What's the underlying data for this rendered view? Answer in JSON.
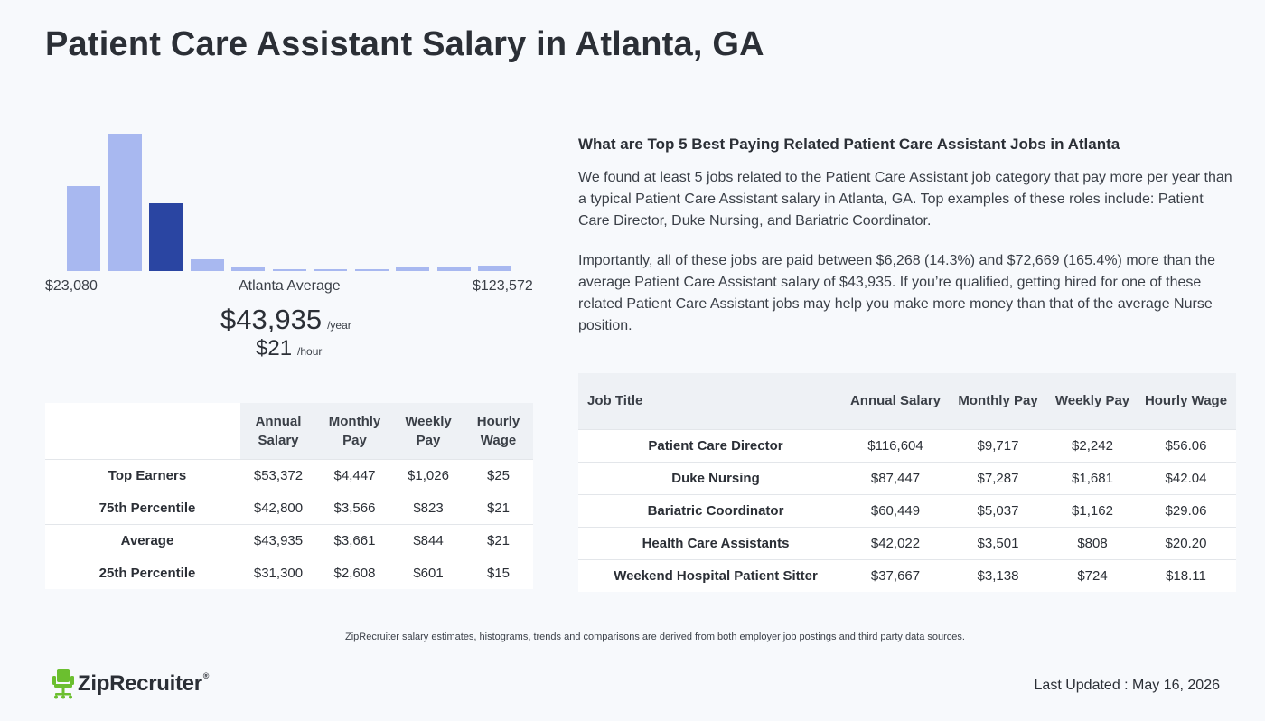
{
  "page_title": "Patient Care Assistant Salary in Atlanta, GA",
  "histogram": {
    "values": [
      94,
      152,
      75,
      13,
      4,
      2,
      2,
      2,
      4,
      5,
      6
    ],
    "active_index": 2,
    "min_label": "$23,080",
    "avg_label": "Atlanta Average",
    "max_label": "$123,572",
    "colors": {
      "bar": "#a8b8f0",
      "active": "#2a45a2"
    }
  },
  "average": {
    "year_value": "$43,935",
    "year_unit": "/year",
    "hour_value": "$21",
    "hour_unit": "/hour"
  },
  "percentile_table": {
    "headers": [
      "Annual Salary",
      "Monthly Pay",
      "Weekly Pay",
      "Hourly Wage"
    ],
    "rows": [
      {
        "label": "Top Earners",
        "annual": "$53,372",
        "monthly": "$4,447",
        "weekly": "$1,026",
        "hourly": "$25"
      },
      {
        "label": "75th Percentile",
        "annual": "$42,800",
        "monthly": "$3,566",
        "weekly": "$823",
        "hourly": "$21"
      },
      {
        "label": "Average",
        "annual": "$43,935",
        "monthly": "$3,661",
        "weekly": "$844",
        "hourly": "$21"
      },
      {
        "label": "25th Percentile",
        "annual": "$31,300",
        "monthly": "$2,608",
        "weekly": "$601",
        "hourly": "$15"
      }
    ]
  },
  "related": {
    "heading": "What are Top 5 Best Paying Related Patient Care Assistant Jobs in Atlanta",
    "paragraph1": "We found at least 5 jobs related to the Patient Care Assistant job category that pay more per year than a typical Patient Care Assistant salary in Atlanta, GA. Top examples of these roles include: Patient Care Director, Duke Nursing, and Bariatric Coordinator.",
    "paragraph2": "Importantly, all of these jobs are paid between $6,268 (14.3%) and $72,669 (165.4%) more than the average Patient Care Assistant salary of $43,935. If you’re qualified, getting hired for one of these related Patient Care Assistant jobs may help you make more money than that of the average Nurse position.",
    "headers": [
      "Job Title",
      "Annual Salary",
      "Monthly Pay",
      "Weekly Pay",
      "Hourly Wage"
    ],
    "rows": [
      {
        "title": "Patient Care Director",
        "annual": "$116,604",
        "monthly": "$9,717",
        "weekly": "$2,242",
        "hourly": "$56.06"
      },
      {
        "title": "Duke Nursing",
        "annual": "$87,447",
        "monthly": "$7,287",
        "weekly": "$1,681",
        "hourly": "$42.04"
      },
      {
        "title": "Bariatric Coordinator",
        "annual": "$60,449",
        "monthly": "$5,037",
        "weekly": "$1,162",
        "hourly": "$29.06"
      },
      {
        "title": "Health Care Assistants",
        "annual": "$42,022",
        "monthly": "$3,501",
        "weekly": "$808",
        "hourly": "$20.20"
      },
      {
        "title": "Weekend Hospital Patient Sitter",
        "annual": "$37,667",
        "monthly": "$3,138",
        "weekly": "$724",
        "hourly": "$18.11"
      }
    ]
  },
  "footer": {
    "disclaimer": "ZipRecruiter salary estimates, histograms, trends and comparisons are derived from both employer job postings and third party data sources.",
    "brand": "ZipRecruiter",
    "brand_mark": "®",
    "logo_icon": "chair-icon",
    "logo_color": "#6bbf2f",
    "updated": "Last Updated : May 16, 2026"
  }
}
